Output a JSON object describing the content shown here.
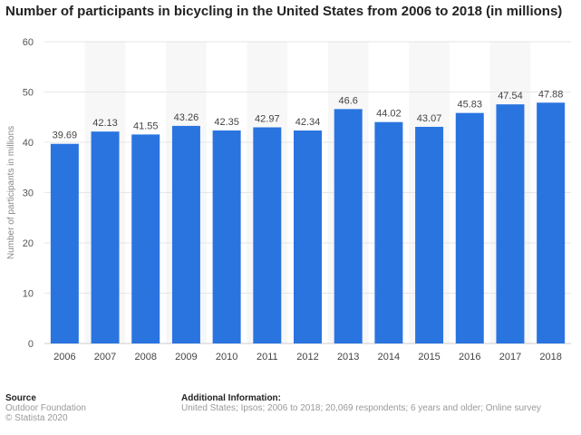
{
  "title": "Number of participants in bicycling in the United States from 2006 to 2018 (in millions)",
  "chart_data": {
    "type": "bar",
    "categories": [
      "2006",
      "2007",
      "2008",
      "2009",
      "2010",
      "2011",
      "2012",
      "2013",
      "2014",
      "2015",
      "2016",
      "2017",
      "2018"
    ],
    "values": [
      39.69,
      42.13,
      41.55,
      43.26,
      42.35,
      42.97,
      42.34,
      46.6,
      44.02,
      43.07,
      45.83,
      47.54,
      47.88
    ],
    "value_labels": [
      "39.69",
      "42.13",
      "41.55",
      "43.26",
      "42.35",
      "42.97",
      "42.34",
      "46.6",
      "44.02",
      "43.07",
      "45.83",
      "47.54",
      "47.88"
    ],
    "ylabel": "Number of participants in millions",
    "xlabel": "",
    "ylim": [
      0,
      60
    ],
    "yticks": [
      0,
      10,
      20,
      30,
      40,
      50,
      60
    ],
    "grid": true,
    "bar_color": "#2a74e0"
  },
  "footer": {
    "source_heading": "Source",
    "source_lines": [
      "Outdoor Foundation",
      "© Statista 2020"
    ],
    "info_heading": "Additional Information:",
    "info_line": "United States; Ipsos; 2006 to 2018; 20,069 respondents; 6 years and older; Online survey"
  }
}
